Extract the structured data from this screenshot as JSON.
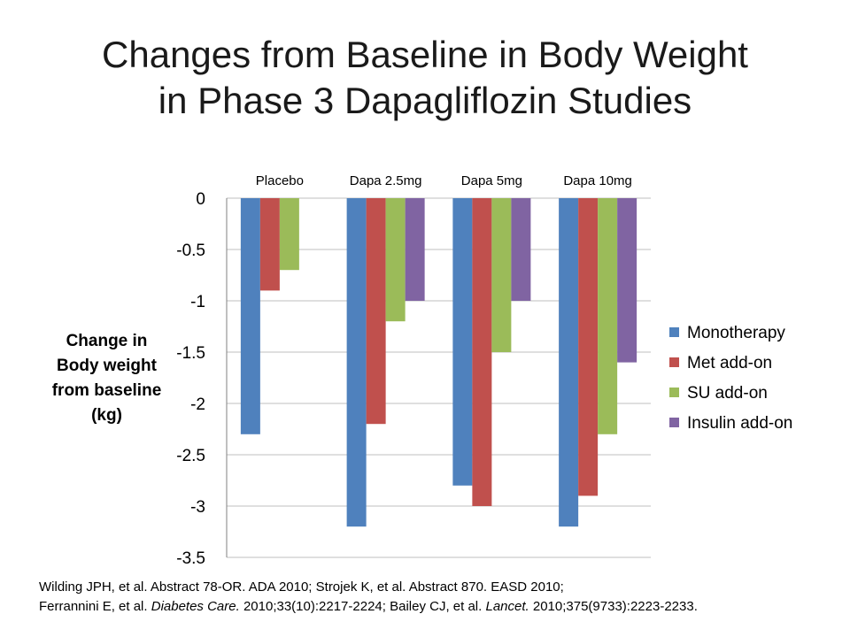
{
  "slide": {
    "title_line1": "Changes from Baseline in Body Weight",
    "title_line2": "in Phase 3 Dapagliflozin Studies"
  },
  "chart_data": {
    "type": "bar",
    "categories": [
      "Placebo",
      "Dapa 2.5mg",
      "Dapa 5mg",
      "Dapa 10mg"
    ],
    "series": [
      {
        "name": "Monotherapy",
        "color": "#4F81BD",
        "values": [
          -2.3,
          -3.2,
          -2.8,
          -3.2
        ]
      },
      {
        "name": "Met add-on",
        "color": "#C0504D",
        "values": [
          -0.9,
          -2.2,
          -3.0,
          -2.9
        ]
      },
      {
        "name": "SU add-on",
        "color": "#9BBB59",
        "values": [
          -0.7,
          -1.2,
          -1.5,
          -2.3
        ]
      },
      {
        "name": "Insulin add-on",
        "color": "#8064A2",
        "values": [
          null,
          -1.0,
          -1.0,
          -1.6
        ]
      }
    ],
    "ylabel_lines": [
      "Change in",
      "Body weight",
      "from baseline",
      "(kg)"
    ],
    "xlabel": "",
    "ylim": [
      -3.5,
      0
    ],
    "yticks": [
      0,
      -0.5,
      -1,
      -1.5,
      -2,
      -2.5,
      -3,
      -3.5
    ],
    "ytick_labels": [
      "0",
      "-0.5",
      "-1",
      "-1.5",
      "-2",
      "-2.5",
      "-3",
      "-3.5"
    ],
    "category_label_position": "top",
    "grid": true,
    "legend": "right"
  },
  "citation": {
    "line1": "Wilding JPH, et al. Abstract 78-OR. ADA 2010; Strojek K, et al. Abstract 870. EASD 2010;",
    "line2_a": "Ferrannini E, et al. ",
    "line2_journal1": "Diabetes Care.",
    "line2_b": " 2010;33(10):2217-2224; Bailey CJ, et al. ",
    "line2_journal2": "Lancet.",
    "line2_c": " 2010;375(9733):2223-2233."
  }
}
